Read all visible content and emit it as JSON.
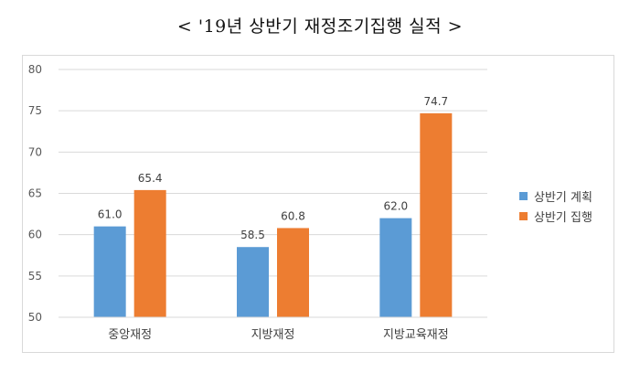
{
  "title": "< '19년 상반기 재정조기집행 실적 >",
  "chart_data": {
    "type": "bar",
    "categories": [
      "중앙재정",
      "지방재정",
      "지방교육재정"
    ],
    "series": [
      {
        "name": "상반기 계획",
        "values": [
          61.0,
          58.5,
          62.0
        ],
        "labels": [
          "61.0",
          "58.5",
          "62.0"
        ],
        "color": "#5b9bd5"
      },
      {
        "name": "상반기 집행",
        "values": [
          65.4,
          60.8,
          74.7
        ],
        "labels": [
          "65.4",
          "60.8",
          "74.7"
        ],
        "color": "#ed7d31"
      }
    ],
    "ylim": [
      50,
      80
    ],
    "yticks": [
      50,
      55,
      60,
      65,
      70,
      75,
      80
    ],
    "grid": true,
    "legend_position": "right"
  }
}
